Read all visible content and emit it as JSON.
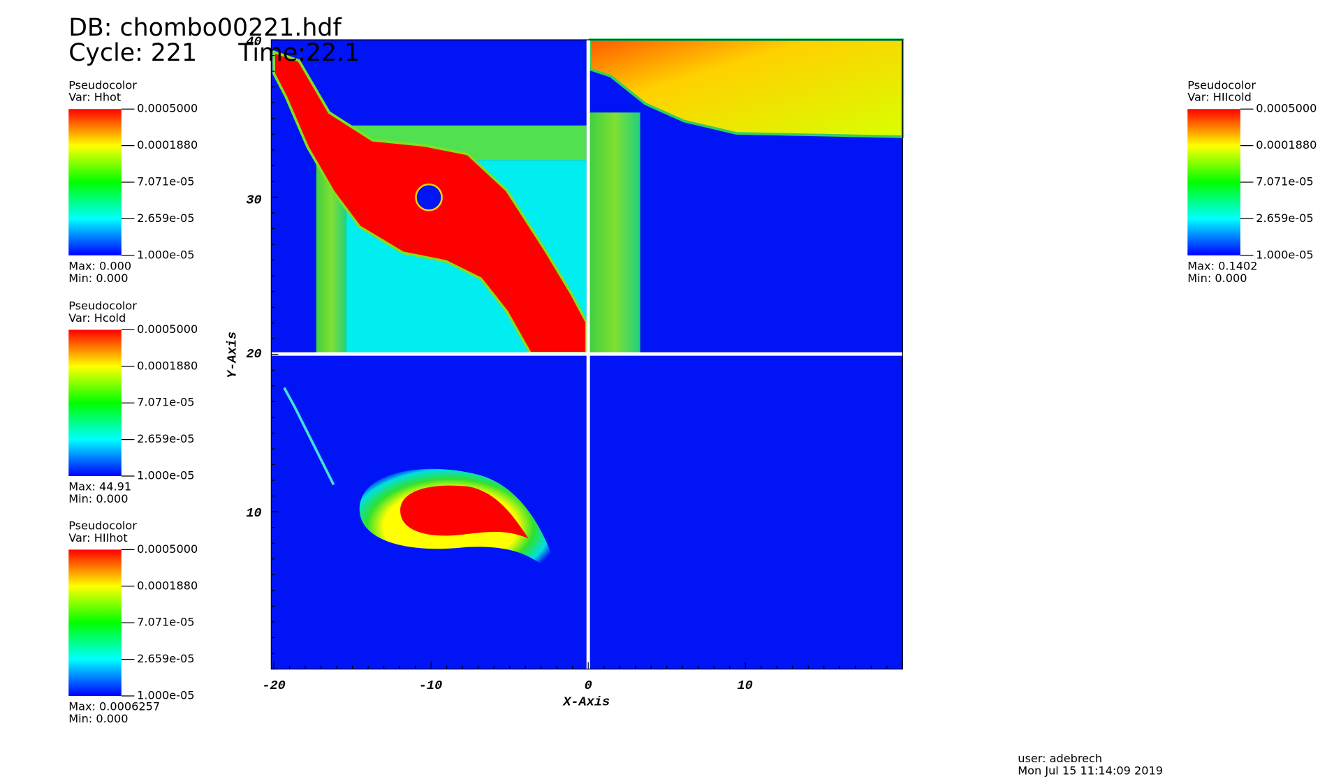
{
  "header": {
    "db": "DB: chombo00221.hdf",
    "cycle": "Cycle: 221",
    "time": "Time:22.1"
  },
  "legends": [
    {
      "title": "Pseudocolor",
      "var": "Var: Hhot",
      "ticks": [
        "0.0005000",
        "0.0001880",
        "7.071e-05",
        "2.659e-05",
        "1.000e-05"
      ],
      "max": "Max:  0.000",
      "min": "Min:  0.000"
    },
    {
      "title": "Pseudocolor",
      "var": "Var: Hcold",
      "ticks": [
        "0.0005000",
        "0.0001880",
        "7.071e-05",
        "2.659e-05",
        "1.000e-05"
      ],
      "max": "Max:  44.91",
      "min": "Min:  0.000"
    },
    {
      "title": "Pseudocolor",
      "var": "Var: HIIhot",
      "ticks": [
        "0.0005000",
        "0.0001880",
        "7.071e-05",
        "2.659e-05",
        "1.000e-05"
      ],
      "max": "Max:  0.0006257",
      "min": "Min:  0.000"
    },
    {
      "title": "Pseudocolor",
      "var": "Var: HIIcold",
      "ticks": [
        "0.0005000",
        "0.0001880",
        "7.071e-05",
        "2.659e-05",
        "1.000e-05"
      ],
      "max": "Max:  0.1402",
      "min": "Min:  0.000"
    }
  ],
  "axes": {
    "x_label": "X-Axis",
    "y_label": "Y-Axis",
    "x_ticks": [
      "-20",
      "-10",
      "0",
      "10"
    ],
    "y_ticks": [
      "40",
      "30",
      "20",
      "10"
    ]
  },
  "footer": {
    "user": "user: adebrech",
    "date": "Mon Jul 15 11:14:09 2019"
  }
}
